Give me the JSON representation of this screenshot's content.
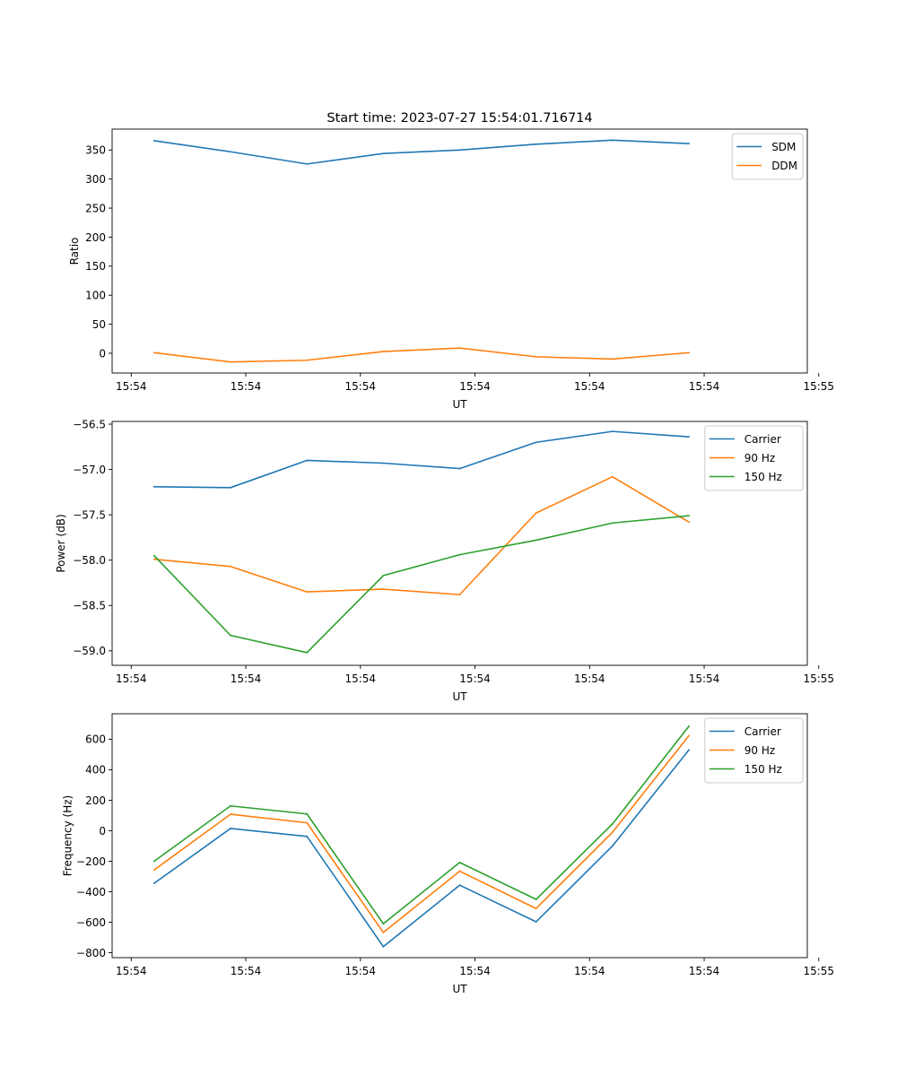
{
  "figure_title": "Start time: 2023-07-27 15:54:01.716714",
  "x_tick_labels": [
    "15:54",
    "15:54",
    "15:54",
    "15:54",
    "15:54",
    "15:54",
    "15:55"
  ],
  "colors": {
    "blue": "#1f77b4",
    "orange": "#ff7f0e",
    "green": "#2ca02c"
  },
  "chart_data": [
    {
      "type": "line",
      "title": "Start time: 2023-07-27 15:54:01.716714",
      "xlabel": "UT",
      "ylabel": "Ratio",
      "x": [
        1,
        2,
        3,
        4,
        5,
        6,
        7,
        8
      ],
      "xlim": [
        0.45,
        9.55
      ],
      "ylim": [
        -34,
        386
      ],
      "yticks": [
        0,
        50,
        100,
        150,
        200,
        250,
        300,
        350
      ],
      "ytick_labels": [
        "0",
        "50",
        "100",
        "150",
        "200",
        "250",
        "300",
        "350"
      ],
      "legend_position": "top-right",
      "series": [
        {
          "name": "SDM",
          "color": "#1f77b4",
          "values": [
            366,
            347,
            326,
            344,
            350,
            360,
            367,
            361
          ]
        },
        {
          "name": "DDM",
          "color": "#ff7f0e",
          "values": [
            1,
            -15,
            -12,
            3,
            9,
            -6,
            -10,
            1
          ]
        }
      ]
    },
    {
      "type": "line",
      "title": "",
      "xlabel": "UT",
      "ylabel": "Power (dB)",
      "x": [
        1,
        2,
        3,
        4,
        5,
        6,
        7,
        8
      ],
      "xlim": [
        0.45,
        9.55
      ],
      "ylim": [
        -59.16,
        -56.47
      ],
      "yticks": [
        -59.0,
        -58.5,
        -58.0,
        -57.5,
        -57.0,
        -56.5
      ],
      "ytick_labels": [
        "−59.0",
        "−58.5",
        "−58.0",
        "−57.5",
        "−57.0",
        "−56.5"
      ],
      "legend_position": "top-right",
      "series": [
        {
          "name": "Carrier",
          "color": "#1f77b4",
          "values": [
            -57.19,
            -57.2,
            -56.9,
            -56.93,
            -56.99,
            -56.7,
            -56.58,
            -56.64
          ]
        },
        {
          "name": "90 Hz",
          "color": "#ff7f0e",
          "values": [
            -57.99,
            -58.07,
            -58.35,
            -58.32,
            -58.38,
            -57.48,
            -57.08,
            -57.58
          ]
        },
        {
          "name": "150 Hz",
          "color": "#2ca02c",
          "values": [
            -57.95,
            -58.83,
            -59.02,
            -58.17,
            -57.94,
            -57.78,
            -57.59,
            -57.51
          ]
        }
      ]
    },
    {
      "type": "line",
      "title": "",
      "xlabel": "UT",
      "ylabel": "Frequency (Hz)",
      "x": [
        1,
        2,
        3,
        4,
        5,
        6,
        7,
        8
      ],
      "xlim": [
        0.45,
        9.55
      ],
      "ylim": [
        -832,
        767
      ],
      "yticks": [
        -800,
        -600,
        -400,
        -200,
        0,
        200,
        400,
        600
      ],
      "ytick_labels": [
        "−800",
        "−600",
        "−400",
        "−200",
        "0",
        "200",
        "400",
        "600"
      ],
      "legend_position": "top-right",
      "series": [
        {
          "name": "Carrier",
          "color": "#1f77b4",
          "values": [
            -345,
            15,
            -37,
            -760,
            -357,
            -597,
            -100,
            530
          ]
        },
        {
          "name": "90 Hz",
          "color": "#ff7f0e",
          "values": [
            -257,
            108,
            52,
            -667,
            -265,
            -510,
            -10,
            623
          ]
        },
        {
          "name": "150 Hz",
          "color": "#2ca02c",
          "values": [
            -200,
            163,
            110,
            -610,
            -208,
            -450,
            45,
            685
          ]
        }
      ]
    }
  ]
}
